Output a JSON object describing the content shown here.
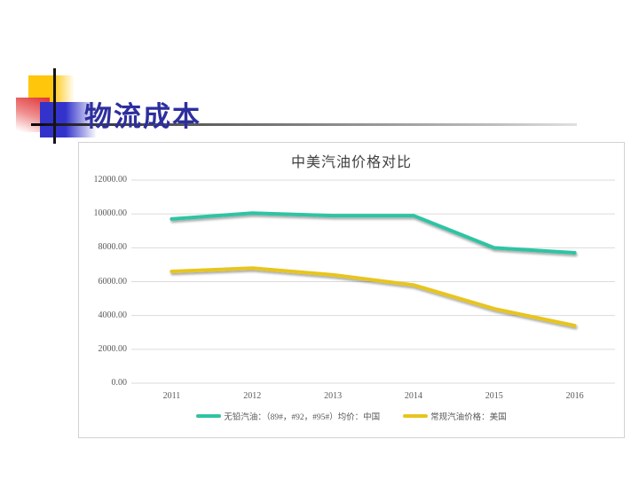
{
  "slide": {
    "title": "物流成本",
    "accents": {
      "ornament_yellow": "#FFC60B",
      "ornament_blue": "#3333CC",
      "ornament_red": "#E03A3A",
      "title_text": "#2D2F9E"
    }
  },
  "chart_data": {
    "type": "line",
    "title": "中美汽油价格对比",
    "categories": [
      "2011",
      "2012",
      "2013",
      "2014",
      "2015",
      "2016"
    ],
    "series": [
      {
        "name": "无铅汽油：（89#，#92，#95#）均价：中国",
        "color": "#2EC4A3",
        "values": [
          9700,
          10050,
          9900,
          9900,
          8000,
          7700
        ]
      },
      {
        "name": "常规汽油价格：美国",
        "color": "#E8C51D",
        "values": [
          6600,
          6800,
          6400,
          5800,
          4400,
          3400
        ]
      }
    ],
    "xlabel": "",
    "ylabel": "",
    "ylim": [
      0,
      12000
    ],
    "ytick_step": 2000,
    "ytick_labels": [
      "0.00",
      "2000.00",
      "4000.00",
      "6000.00",
      "8000.00",
      "10000.00",
      "12000.00"
    ],
    "grid": true,
    "gridline_color": "#DBDBDB",
    "legend_position": "bottom"
  }
}
